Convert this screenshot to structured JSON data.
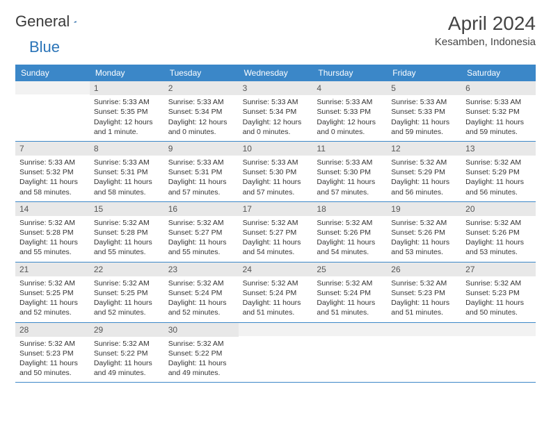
{
  "logo": {
    "part1": "General",
    "part2": "Blue"
  },
  "title": "April 2024",
  "location": "Kesamben, Indonesia",
  "colors": {
    "header_bg": "#3b87c8",
    "header_text": "#ffffff",
    "daynum_bg": "#e8e8e8",
    "border": "#3b87c8",
    "logo_blue": "#2a74b8",
    "body_text": "#333333"
  },
  "dayHeaders": [
    "Sunday",
    "Monday",
    "Tuesday",
    "Wednesday",
    "Thursday",
    "Friday",
    "Saturday"
  ],
  "weeks": [
    [
      {
        "n": "",
        "sunrise": "",
        "sunset": "",
        "daylight": ""
      },
      {
        "n": "1",
        "sunrise": "Sunrise: 5:33 AM",
        "sunset": "Sunset: 5:35 PM",
        "daylight": "Daylight: 12 hours and 1 minute."
      },
      {
        "n": "2",
        "sunrise": "Sunrise: 5:33 AM",
        "sunset": "Sunset: 5:34 PM",
        "daylight": "Daylight: 12 hours and 0 minutes."
      },
      {
        "n": "3",
        "sunrise": "Sunrise: 5:33 AM",
        "sunset": "Sunset: 5:34 PM",
        "daylight": "Daylight: 12 hours and 0 minutes."
      },
      {
        "n": "4",
        "sunrise": "Sunrise: 5:33 AM",
        "sunset": "Sunset: 5:33 PM",
        "daylight": "Daylight: 12 hours and 0 minutes."
      },
      {
        "n": "5",
        "sunrise": "Sunrise: 5:33 AM",
        "sunset": "Sunset: 5:33 PM",
        "daylight": "Daylight: 11 hours and 59 minutes."
      },
      {
        "n": "6",
        "sunrise": "Sunrise: 5:33 AM",
        "sunset": "Sunset: 5:32 PM",
        "daylight": "Daylight: 11 hours and 59 minutes."
      }
    ],
    [
      {
        "n": "7",
        "sunrise": "Sunrise: 5:33 AM",
        "sunset": "Sunset: 5:32 PM",
        "daylight": "Daylight: 11 hours and 58 minutes."
      },
      {
        "n": "8",
        "sunrise": "Sunrise: 5:33 AM",
        "sunset": "Sunset: 5:31 PM",
        "daylight": "Daylight: 11 hours and 58 minutes."
      },
      {
        "n": "9",
        "sunrise": "Sunrise: 5:33 AM",
        "sunset": "Sunset: 5:31 PM",
        "daylight": "Daylight: 11 hours and 57 minutes."
      },
      {
        "n": "10",
        "sunrise": "Sunrise: 5:33 AM",
        "sunset": "Sunset: 5:30 PM",
        "daylight": "Daylight: 11 hours and 57 minutes."
      },
      {
        "n": "11",
        "sunrise": "Sunrise: 5:33 AM",
        "sunset": "Sunset: 5:30 PM",
        "daylight": "Daylight: 11 hours and 57 minutes."
      },
      {
        "n": "12",
        "sunrise": "Sunrise: 5:32 AM",
        "sunset": "Sunset: 5:29 PM",
        "daylight": "Daylight: 11 hours and 56 minutes."
      },
      {
        "n": "13",
        "sunrise": "Sunrise: 5:32 AM",
        "sunset": "Sunset: 5:29 PM",
        "daylight": "Daylight: 11 hours and 56 minutes."
      }
    ],
    [
      {
        "n": "14",
        "sunrise": "Sunrise: 5:32 AM",
        "sunset": "Sunset: 5:28 PM",
        "daylight": "Daylight: 11 hours and 55 minutes."
      },
      {
        "n": "15",
        "sunrise": "Sunrise: 5:32 AM",
        "sunset": "Sunset: 5:28 PM",
        "daylight": "Daylight: 11 hours and 55 minutes."
      },
      {
        "n": "16",
        "sunrise": "Sunrise: 5:32 AM",
        "sunset": "Sunset: 5:27 PM",
        "daylight": "Daylight: 11 hours and 55 minutes."
      },
      {
        "n": "17",
        "sunrise": "Sunrise: 5:32 AM",
        "sunset": "Sunset: 5:27 PM",
        "daylight": "Daylight: 11 hours and 54 minutes."
      },
      {
        "n": "18",
        "sunrise": "Sunrise: 5:32 AM",
        "sunset": "Sunset: 5:26 PM",
        "daylight": "Daylight: 11 hours and 54 minutes."
      },
      {
        "n": "19",
        "sunrise": "Sunrise: 5:32 AM",
        "sunset": "Sunset: 5:26 PM",
        "daylight": "Daylight: 11 hours and 53 minutes."
      },
      {
        "n": "20",
        "sunrise": "Sunrise: 5:32 AM",
        "sunset": "Sunset: 5:26 PM",
        "daylight": "Daylight: 11 hours and 53 minutes."
      }
    ],
    [
      {
        "n": "21",
        "sunrise": "Sunrise: 5:32 AM",
        "sunset": "Sunset: 5:25 PM",
        "daylight": "Daylight: 11 hours and 52 minutes."
      },
      {
        "n": "22",
        "sunrise": "Sunrise: 5:32 AM",
        "sunset": "Sunset: 5:25 PM",
        "daylight": "Daylight: 11 hours and 52 minutes."
      },
      {
        "n": "23",
        "sunrise": "Sunrise: 5:32 AM",
        "sunset": "Sunset: 5:24 PM",
        "daylight": "Daylight: 11 hours and 52 minutes."
      },
      {
        "n": "24",
        "sunrise": "Sunrise: 5:32 AM",
        "sunset": "Sunset: 5:24 PM",
        "daylight": "Daylight: 11 hours and 51 minutes."
      },
      {
        "n": "25",
        "sunrise": "Sunrise: 5:32 AM",
        "sunset": "Sunset: 5:24 PM",
        "daylight": "Daylight: 11 hours and 51 minutes."
      },
      {
        "n": "26",
        "sunrise": "Sunrise: 5:32 AM",
        "sunset": "Sunset: 5:23 PM",
        "daylight": "Daylight: 11 hours and 51 minutes."
      },
      {
        "n": "27",
        "sunrise": "Sunrise: 5:32 AM",
        "sunset": "Sunset: 5:23 PM",
        "daylight": "Daylight: 11 hours and 50 minutes."
      }
    ],
    [
      {
        "n": "28",
        "sunrise": "Sunrise: 5:32 AM",
        "sunset": "Sunset: 5:23 PM",
        "daylight": "Daylight: 11 hours and 50 minutes."
      },
      {
        "n": "29",
        "sunrise": "Sunrise: 5:32 AM",
        "sunset": "Sunset: 5:22 PM",
        "daylight": "Daylight: 11 hours and 49 minutes."
      },
      {
        "n": "30",
        "sunrise": "Sunrise: 5:32 AM",
        "sunset": "Sunset: 5:22 PM",
        "daylight": "Daylight: 11 hours and 49 minutes."
      },
      {
        "n": "",
        "sunrise": "",
        "sunset": "",
        "daylight": ""
      },
      {
        "n": "",
        "sunrise": "",
        "sunset": "",
        "daylight": ""
      },
      {
        "n": "",
        "sunrise": "",
        "sunset": "",
        "daylight": ""
      },
      {
        "n": "",
        "sunrise": "",
        "sunset": "",
        "daylight": ""
      }
    ]
  ]
}
